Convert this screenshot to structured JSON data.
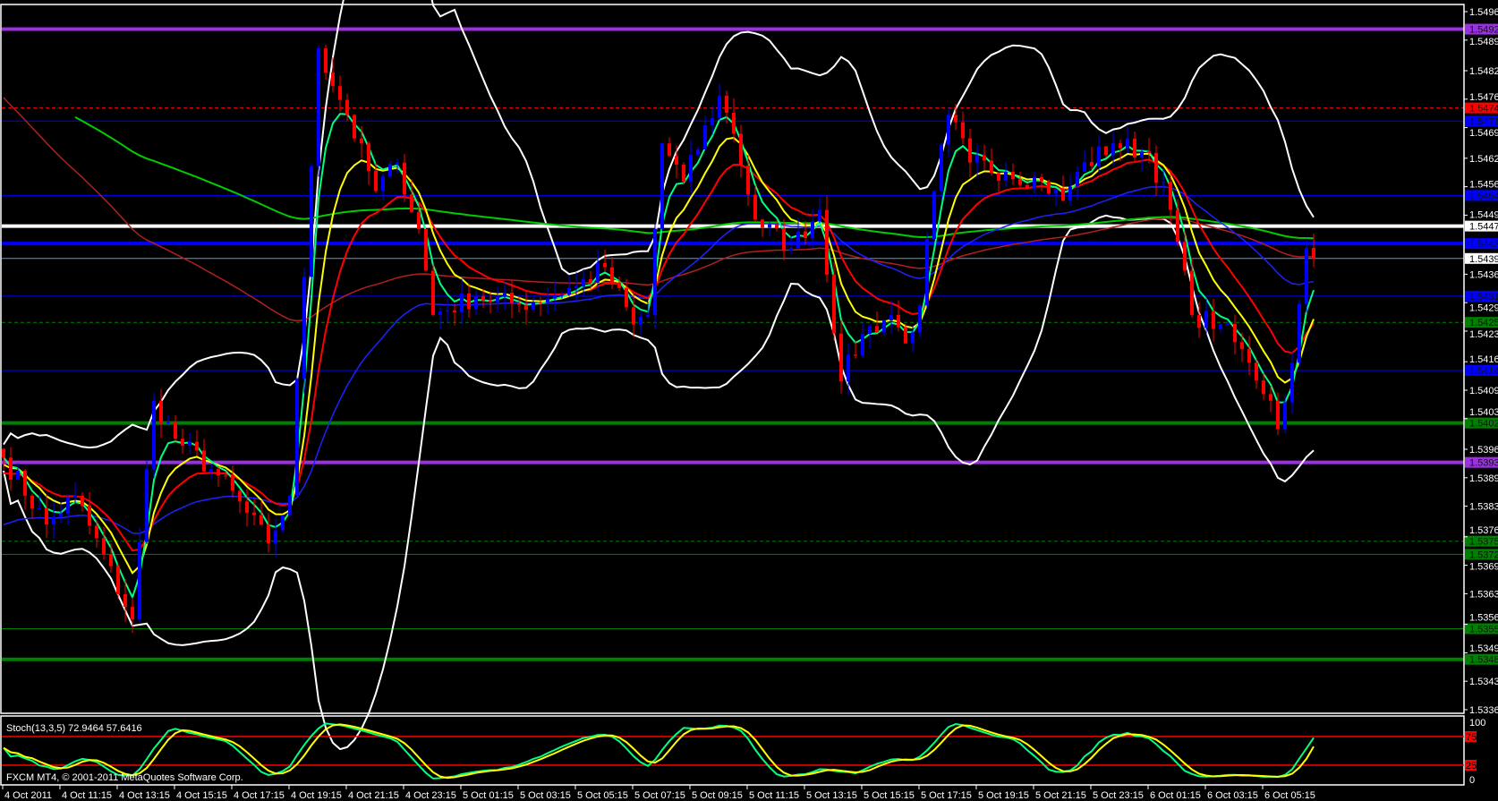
{
  "window": {
    "copyright": "FXCM MT4, © 2001-2011 MetaQuotes Software Corp."
  },
  "colors": {
    "background": "#000000",
    "axis": "#ffffff",
    "bull_candle": "#0000ff",
    "bear_candle": "#ff0000",
    "bollinger": "#ffffff",
    "ma_fast": "#00ff80",
    "ma_yellow": "#ffff00",
    "ma_red": "#ff0000",
    "ma_blue": "#2020ff",
    "ma_darkred": "#b02020",
    "ma_green_slow": "#00cc00",
    "stoch_main": "#00ff80",
    "stoch_signal": "#ffff00",
    "stoch_levels": "#ff0000"
  },
  "chart_data": [
    {
      "type": "candlestick",
      "symbol_timeframe": "15 min",
      "price_axis_ticks": [
        "1.54960",
        "1.54895",
        "1.54825",
        "1.54760",
        "1.54695",
        "1.54625",
        "1.54560",
        "1.54495",
        "1.54360",
        "1.54295",
        "1.54230",
        "1.54160",
        "1.54095",
        "1.54030",
        "1.53960",
        "1.53895",
        "1.53830",
        "1.53760",
        "1.53695",
        "1.53630",
        "1.53560",
        "1.53495",
        "1.53430",
        "1.53365"
      ],
      "ylim": [
        1.53365,
        1.5496
      ],
      "time_axis_labels": [
        "4 Oct 2011",
        "4 Oct 11:15",
        "4 Oct 13:15",
        "4 Oct 15:15",
        "4 Oct 17:15",
        "4 Oct 19:15",
        "4 Oct 21:15",
        "4 Oct 23:15",
        "5 Oct 01:15",
        "5 Oct 03:15",
        "5 Oct 05:15",
        "5 Oct 07:15",
        "5 Oct 09:15",
        "5 Oct 11:15",
        "5 Oct 13:15",
        "5 Oct 15:15",
        "5 Oct 17:15",
        "5 Oct 19:15",
        "5 Oct 21:15",
        "5 Oct 23:15",
        "6 Oct 01:15",
        "6 Oct 03:15",
        "6 Oct 05:15"
      ],
      "first_bar_time": "4 Oct 09:15",
      "close_path": [
        {
          "t": "4 Oct 09:15",
          "close": 1.53941
        },
        {
          "t": "4 Oct 10:45",
          "close": 1.53788
        },
        {
          "t": "4 Oct 11:45",
          "close": 1.53854
        },
        {
          "t": "4 Oct 13:45",
          "close": 1.53571
        },
        {
          "t": "4 Oct 14:30",
          "close": 1.54071
        },
        {
          "t": "4 Oct 15:15",
          "close": 1.53984
        },
        {
          "t": "4 Oct 16:45",
          "close": 1.539
        },
        {
          "t": "4 Oct 18:30",
          "close": 1.53745
        },
        {
          "t": "4 Oct 19:15",
          "close": 1.53854
        },
        {
          "t": "4 Oct 19:45",
          "close": 1.54354
        },
        {
          "t": "4 Oct 20:15",
          "close": 1.54876
        },
        {
          "t": "4 Oct 21:15",
          "close": 1.54724
        },
        {
          "t": "4 Oct 22:15",
          "close": 1.5455
        },
        {
          "t": "4 Oct 23:00",
          "close": 1.54615
        },
        {
          "t": "4 Oct 23:45",
          "close": 1.54463
        },
        {
          "t": "5 Oct 00:15",
          "close": 1.54267
        },
        {
          "t": "5 Oct 01:45",
          "close": 1.5431
        },
        {
          "t": "5 Oct 03:15",
          "close": 1.5429
        },
        {
          "t": "5 Oct 05:15",
          "close": 1.54332
        },
        {
          "t": "5 Oct 06:15",
          "close": 1.54376
        },
        {
          "t": "5 Oct 07:15",
          "close": 1.54245
        },
        {
          "t": "5 Oct 07:45",
          "close": 1.54267
        },
        {
          "t": "5 Oct 08:15",
          "close": 1.54659
        },
        {
          "t": "5 Oct 09:00",
          "close": 1.54572
        },
        {
          "t": "5 Oct 10:15",
          "close": 1.54768
        },
        {
          "t": "5 Oct 10:45",
          "close": 1.54681
        },
        {
          "t": "5 Oct 11:30",
          "close": 1.54485
        },
        {
          "t": "5 Oct 12:45",
          "close": 1.5442
        },
        {
          "t": "5 Oct 13:45",
          "close": 1.54507
        },
        {
          "t": "5 Oct 14:30",
          "close": 1.54115
        },
        {
          "t": "5 Oct 15:15",
          "close": 1.54224
        },
        {
          "t": "5 Oct 16:15",
          "close": 1.54267
        },
        {
          "t": "5 Oct 16:45",
          "close": 1.54202
        },
        {
          "t": "5 Oct 17:15",
          "close": 1.54289
        },
        {
          "t": "5 Oct 17:45",
          "close": 1.5455
        },
        {
          "t": "5 Oct 18:15",
          "close": 1.54724
        },
        {
          "t": "5 Oct 19:00",
          "close": 1.54615
        },
        {
          "t": "5 Oct 20:15",
          "close": 1.54594
        },
        {
          "t": "5 Oct 21:30",
          "close": 1.54572
        },
        {
          "t": "5 Oct 22:15",
          "close": 1.54528
        },
        {
          "t": "5 Oct 22:45",
          "close": 1.54594
        },
        {
          "t": "6 Oct 00:00",
          "close": 1.54659
        },
        {
          "t": "6 Oct 01:15",
          "close": 1.54637
        },
        {
          "t": "6 Oct 02:00",
          "close": 1.54507
        },
        {
          "t": "6 Oct 02:45",
          "close": 1.54267
        },
        {
          "t": "6 Oct 03:45",
          "close": 1.54245
        },
        {
          "t": "6 Oct 04:45",
          "close": 1.54158
        },
        {
          "t": "6 Oct 05:30",
          "close": 1.54071
        },
        {
          "t": "6 Oct 05:45",
          "close": 1.54006
        },
        {
          "t": "6 Oct 06:15",
          "close": 1.54158
        },
        {
          "t": "6 Oct 06:45",
          "close": 1.5442
        },
        {
          "t": "6 Oct 07:00",
          "close": 1.54396
        }
      ],
      "current_price": {
        "label": "1.54396",
        "value": 1.54396
      },
      "horizontal_lines": [
        {
          "label": "1.54920",
          "value": 1.5492,
          "color": "#9b30e0",
          "style": "thick"
        },
        {
          "label": "1.54740",
          "value": 1.5474,
          "color": "#ff0000",
          "style": "dashed"
        },
        {
          "label": "1.54710",
          "value": 1.5471,
          "color": "#0000ff",
          "style": "thin"
        },
        {
          "label": "1.54540",
          "value": 1.5454,
          "color": "#0000ff",
          "style": "thin"
        },
        {
          "label": "1.54470",
          "value": 1.5447,
          "color": "#ffffff",
          "style": "thick"
        },
        {
          "label": "1.54430",
          "value": 1.5443,
          "color": "#0000ff",
          "style": "thick"
        },
        {
          "label": "1.54310",
          "value": 1.5431,
          "color": "#0000ff",
          "style": "thin"
        },
        {
          "label": "1.54250",
          "value": 1.5425,
          "color": "#008000",
          "style": "dashed"
        },
        {
          "label": "1.54140",
          "value": 1.5414,
          "color": "#0000ff",
          "style": "thin"
        },
        {
          "label": "1.54020",
          "value": 1.5402,
          "color": "#008000",
          "style": "thick"
        },
        {
          "label": "1.53930",
          "value": 1.5393,
          "color": "#9b30e0",
          "style": "thick"
        },
        {
          "label": "1.53750",
          "value": 1.5375,
          "color": "#008000",
          "style": "dashed"
        },
        {
          "label": "1.53720",
          "value": 1.5372,
          "color": "#008000",
          "style": "thin"
        },
        {
          "label": "1.53550",
          "value": 1.5355,
          "color": "#008000",
          "style": "thin"
        },
        {
          "label": "1.53480",
          "value": 1.5348,
          "color": "#008000",
          "style": "thick"
        }
      ]
    },
    {
      "type": "line",
      "indicator_label": "Stoch(13,3,5) 72.9464 57.6416",
      "ylim": [
        0,
        100
      ],
      "axis_ticks": [
        "100",
        "0"
      ],
      "levels": [
        {
          "label": "75",
          "value": 75
        },
        {
          "label": "25",
          "value": 25
        }
      ],
      "last_values": {
        "main": 72.9464,
        "signal": 57.6416
      }
    }
  ]
}
